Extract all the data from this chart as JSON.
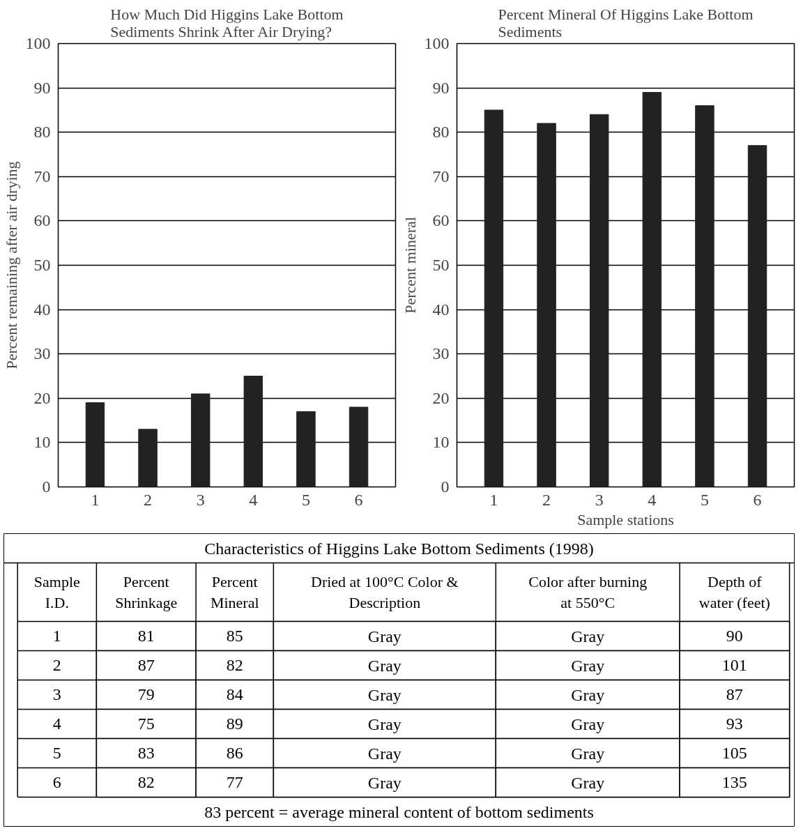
{
  "chart_data": [
    {
      "type": "bar",
      "title": "How Much Did Higgins Lake Bottom Sediments Shrink After Air Drying?",
      "ylabel": "Percent remaining after air drying",
      "categories": [
        "1",
        "2",
        "3",
        "4",
        "5",
        "6"
      ],
      "values": [
        19,
        13,
        21,
        25,
        17,
        18
      ],
      "color": "#222222",
      "ylim": [
        0,
        100
      ],
      "yticks": [
        0,
        10,
        20,
        30,
        40,
        50,
        60,
        70,
        80,
        90,
        100
      ],
      "grid": "y"
    },
    {
      "type": "bar",
      "title": "Percent Mineral Of Higgins Lake Bottom Sediments",
      "ylabel": "Percent mineral",
      "xlabel": "Sample stations",
      "categories": [
        "1",
        "2",
        "3",
        "4",
        "5",
        "6"
      ],
      "values": [
        85,
        82,
        84,
        89,
        86,
        77
      ],
      "color": "#222222",
      "ylim": [
        0,
        100
      ],
      "yticks": [
        0,
        10,
        20,
        30,
        40,
        50,
        60,
        70,
        80,
        90,
        100
      ],
      "grid": "y"
    },
    {
      "type": "heatmap",
      "title": "Characteristics of Higgins Lake Bottom Sediments (1998)",
      "ylabel": "Sample I.D.",
      "categories": [
        "Percent Shrinkage",
        "Percent Mineral",
        "Dried at 100°C Color & Description",
        "Color after burning at 550°C",
        "Depth of water (feet)"
      ],
      "y_categories": [
        "1",
        "2",
        "3",
        "4",
        "5",
        "6"
      ],
      "cells": [
        [
          null,
          null,
          null,
          null,
          null
        ],
        [
          null,
          null,
          null,
          null,
          null
        ],
        [
          null,
          null,
          null,
          null,
          null
        ],
        [
          null,
          null,
          null,
          null,
          null
        ],
        [
          null,
          null,
          null,
          null,
          null
        ],
        [
          null,
          null,
          null,
          null,
          null
        ]
      ],
      "cell_labels": [
        [
          "81",
          "85",
          "Gray",
          "Gray",
          "90"
        ],
        [
          "87",
          "82",
          "Gray",
          "Gray",
          "101"
        ],
        [
          "79",
          "84",
          "Gray",
          "Gray",
          "87"
        ],
        [
          "75",
          "89",
          "Gray",
          "Gray",
          "93"
        ],
        [
          "83",
          "86",
          "Gray",
          "Gray",
          "105"
        ],
        [
          "82",
          "77",
          "Gray",
          "Gray",
          "135"
        ]
      ],
      "annotations": [
        "83 percent = average mineral content of bottom sediments"
      ]
    }
  ]
}
